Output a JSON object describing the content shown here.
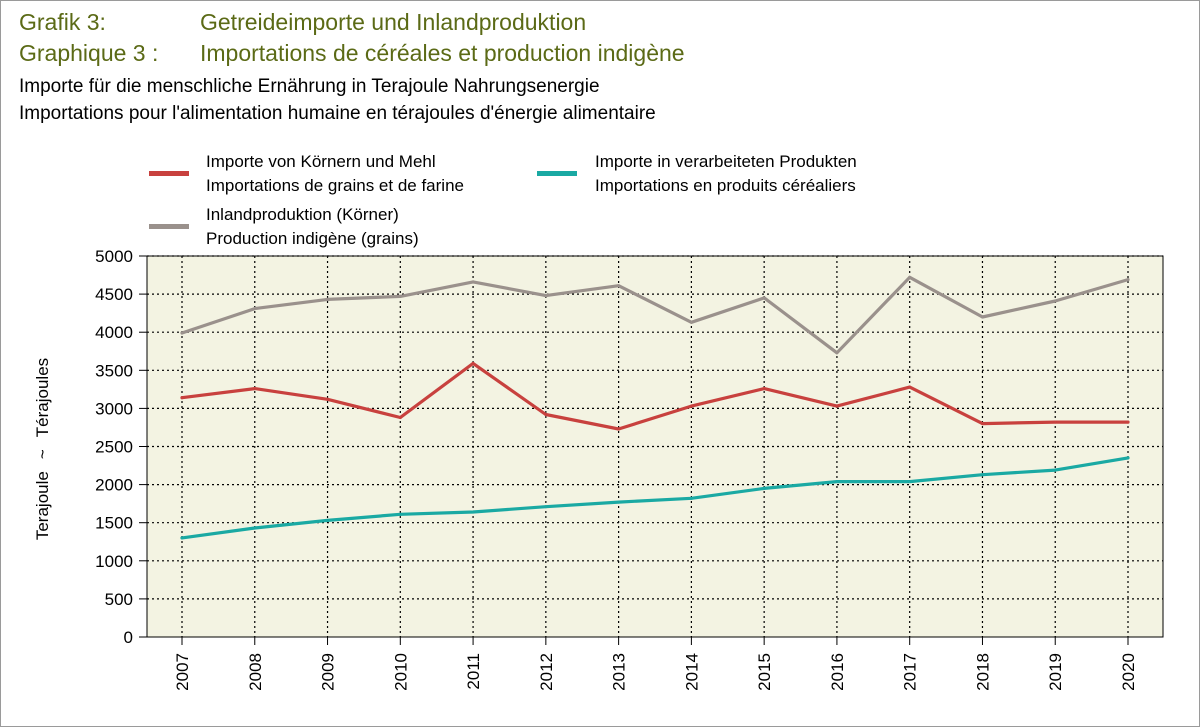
{
  "header": {
    "title_de_label": "Grafik 3:",
    "title_de_text": "Getreideimporte und Inlandproduktion",
    "title_fr_label": "Graphique 3 :",
    "title_fr_text": "Importations de céréales et production indigène",
    "subtitle_de": "Importe für die menschliche Ernährung in Terajoule Nahrungsenergie",
    "subtitle_fr": "Importations pour l'alimentation humaine en térajoules d'énergie alimentaire"
  },
  "legend": [
    {
      "line1": "Importe von Körnern und Mehl",
      "line2": "Importations de grains et de farine",
      "color": "#c8413e"
    },
    {
      "line1": "Importe in verarbeiteten Produkten",
      "line2": "Importations en produits céréaliers",
      "color": "#1aa9a3"
    },
    {
      "line1": "Inlandproduktion (Körner)",
      "line2": "Production indigène (grains)",
      "color": "#9a918c"
    }
  ],
  "axis": {
    "ylabel_de": "Terajoule",
    "ylabel_sep": "~",
    "ylabel_fr": "Térajoules"
  },
  "colors": {
    "plot_background": "#f3f3e2",
    "title": "#5b6a16"
  },
  "chart_data": {
    "type": "line",
    "x": [
      "2007",
      "2008",
      "2009",
      "2010",
      "2011",
      "2012",
      "2013",
      "2014",
      "2015",
      "2016",
      "2017",
      "2018",
      "2019",
      "2020"
    ],
    "ylim": [
      0,
      5000
    ],
    "yticks": [
      0,
      500,
      1000,
      1500,
      2000,
      2500,
      3000,
      3500,
      4000,
      4500,
      5000
    ],
    "grid": true,
    "legend_position": "top",
    "series": [
      {
        "name": "Importe von Körnern und Mehl / Importations de grains et de farine",
        "color": "#c8413e",
        "values": [
          3140,
          3260,
          3120,
          2880,
          3590,
          2920,
          2730,
          3030,
          3260,
          3030,
          3280,
          2800,
          2820,
          2820
        ]
      },
      {
        "name": "Importe in verarbeiteten Produkten / Importations en produits céréaliers",
        "color": "#1aa9a3",
        "values": [
          1300,
          1430,
          1530,
          1610,
          1640,
          1710,
          1770,
          1820,
          1950,
          2040,
          2040,
          2130,
          2190,
          2350
        ]
      },
      {
        "name": "Inlandproduktion (Körner) / Production indigène (grains)",
        "color": "#9a918c",
        "values": [
          3990,
          4310,
          4430,
          4470,
          4660,
          4480,
          4610,
          4130,
          4450,
          3730,
          4720,
          4200,
          4410,
          4690
        ]
      }
    ]
  }
}
